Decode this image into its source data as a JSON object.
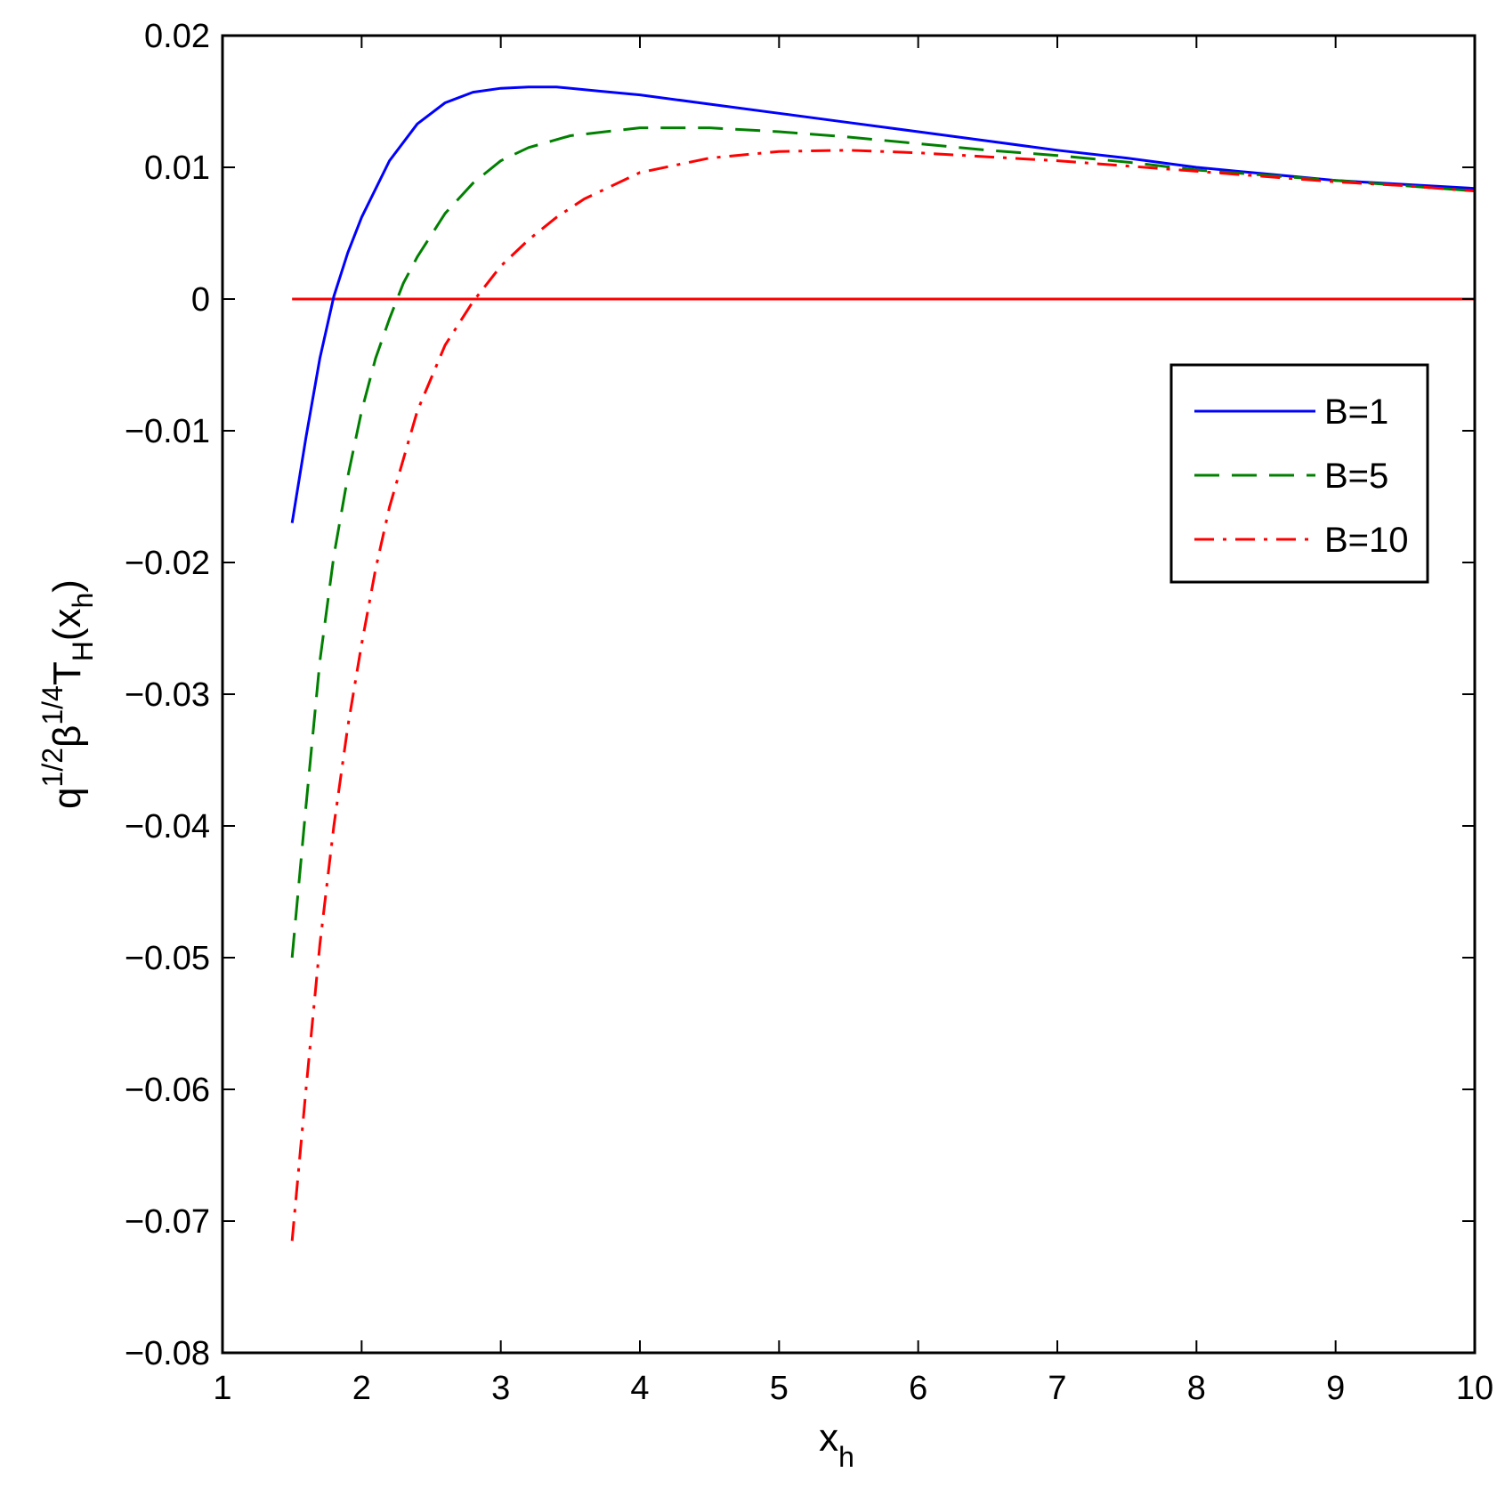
{
  "chart_data": {
    "type": "line",
    "title": "",
    "xlabel": {
      "main": "x",
      "sub": "h"
    },
    "ylabel": {
      "q": "q",
      "q_exp": "1/2",
      "beta": "β",
      "beta_exp": "1/4",
      "T": "T",
      "T_sub": "H",
      "open": "(x",
      "x_sub": "h",
      "close": ")"
    },
    "xlim": [
      1,
      10
    ],
    "ylim": [
      -0.08,
      0.02
    ],
    "xticks": [
      1,
      2,
      3,
      4,
      5,
      6,
      7,
      8,
      9,
      10
    ],
    "xtick_labels": [
      "1",
      "2",
      "3",
      "4",
      "5",
      "6",
      "7",
      "8",
      "9",
      "10"
    ],
    "yticks": [
      0.02,
      0.01,
      0,
      -0.01,
      -0.02,
      -0.03,
      -0.04,
      -0.05,
      -0.06,
      -0.07,
      -0.08
    ],
    "ytick_labels": [
      "0.02",
      "0.01",
      "0",
      "−0.01",
      "−0.02",
      "−0.03",
      "−0.04",
      "−0.05",
      "−0.06",
      "−0.07",
      "−0.08"
    ],
    "grid": false,
    "legend_position": "right, upper-middle",
    "series": [
      {
        "name": "B=1",
        "color": "#0000ff",
        "dash": "solid",
        "x": [
          1.5,
          1.6,
          1.7,
          1.8,
          1.9,
          2.0,
          2.2,
          2.4,
          2.6,
          2.8,
          3.0,
          3.2,
          3.4,
          3.7,
          4.0,
          4.5,
          5.0,
          5.5,
          6.0,
          6.5,
          7.0,
          7.5,
          8.0,
          8.5,
          9.0,
          9.5,
          10.0
        ],
        "y": [
          -0.017,
          -0.0105,
          -0.0045,
          0.0002,
          0.0035,
          0.0062,
          0.0105,
          0.0133,
          0.0149,
          0.0157,
          0.016,
          0.0161,
          0.0161,
          0.0158,
          0.0155,
          0.0148,
          0.0141,
          0.0134,
          0.0127,
          0.012,
          0.0113,
          0.0107,
          0.01,
          0.0095,
          0.009,
          0.0087,
          0.0084
        ]
      },
      {
        "name": "B=5",
        "color": "#008000",
        "dash": "dashed",
        "x": [
          1.5,
          1.6,
          1.7,
          1.8,
          1.9,
          2.0,
          2.1,
          2.2,
          2.3,
          2.4,
          2.6,
          2.8,
          3.0,
          3.2,
          3.5,
          4.0,
          4.5,
          5.0,
          5.5,
          6.0,
          6.5,
          7.0,
          7.5,
          8.0,
          8.5,
          9.0,
          9.5,
          10.0
        ],
        "y": [
          -0.05,
          -0.0385,
          -0.0275,
          -0.0195,
          -0.0135,
          -0.0085,
          -0.0045,
          -0.0015,
          0.0012,
          0.0032,
          0.0065,
          0.0088,
          0.0105,
          0.0115,
          0.0124,
          0.013,
          0.013,
          0.0127,
          0.0123,
          0.0118,
          0.0113,
          0.0109,
          0.0104,
          0.0098,
          0.0094,
          0.009,
          0.0086,
          0.0082
        ]
      },
      {
        "name": "B=10",
        "color": "#ff0000",
        "dash": "dashdot",
        "x": [
          1.5,
          1.6,
          1.7,
          1.8,
          1.9,
          2.0,
          2.1,
          2.2,
          2.4,
          2.6,
          2.8,
          3.0,
          3.2,
          3.4,
          3.6,
          4.0,
          4.5,
          5.0,
          5.5,
          6.0,
          6.5,
          7.0,
          7.5,
          8.0,
          8.5,
          9.0,
          9.5,
          10.0
        ],
        "y": [
          -0.0715,
          -0.06,
          -0.049,
          -0.04,
          -0.0325,
          -0.0262,
          -0.0205,
          -0.0158,
          -0.0085,
          -0.0035,
          -0.0002,
          0.0025,
          0.0045,
          0.0062,
          0.0076,
          0.0096,
          0.0107,
          0.0112,
          0.0113,
          0.0111,
          0.0108,
          0.0105,
          0.0101,
          0.0097,
          0.0093,
          0.0089,
          0.0086,
          0.0082
        ]
      }
    ],
    "reference_line": {
      "y": 0,
      "x_start": 1.5,
      "x_end": 10,
      "color": "#ff0000"
    }
  }
}
